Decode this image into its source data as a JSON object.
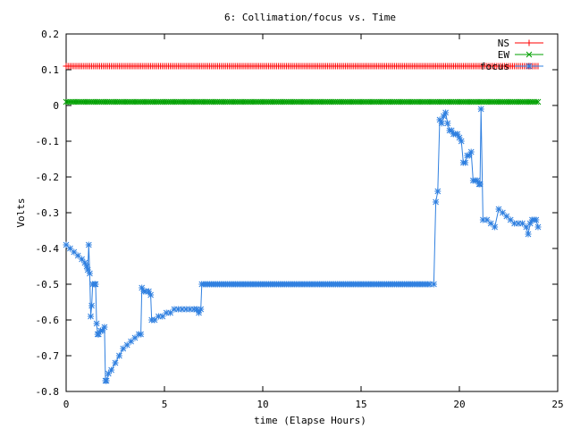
{
  "chart_data": {
    "type": "line",
    "title": "6: Collimation/focus vs. Time",
    "xlabel": "time (Elapse Hours)",
    "ylabel": "Volts",
    "xlim": [
      0,
      25
    ],
    "ylim": [
      -0.8,
      0.2
    ],
    "xticks": [
      0,
      5,
      10,
      15,
      20,
      25
    ],
    "yticks": [
      0.2,
      0.1,
      0,
      -0.1,
      -0.2,
      -0.3,
      -0.4,
      -0.5,
      -0.6,
      -0.7,
      -0.8
    ],
    "grid": false,
    "legend_position": "top-right",
    "series": [
      {
        "name": "NS",
        "color": "#ff0000",
        "marker": "plus",
        "constant": 0.11,
        "x_range": [
          0,
          24
        ],
        "n_points": 241
      },
      {
        "name": "EW",
        "color": "#00a000",
        "marker": "cross",
        "constant": 0.01,
        "x_range": [
          0,
          24
        ],
        "n_points": 241
      },
      {
        "name": "focus",
        "color": "#3080e0",
        "marker": "star",
        "points": [
          [
            0.0,
            -0.39
          ],
          [
            0.2,
            -0.4
          ],
          [
            0.4,
            -0.41
          ],
          [
            0.6,
            -0.42
          ],
          [
            0.8,
            -0.43
          ],
          [
            0.95,
            -0.44
          ],
          [
            1.05,
            -0.45
          ],
          [
            1.1,
            -0.46
          ],
          [
            1.15,
            -0.39
          ],
          [
            1.2,
            -0.47
          ],
          [
            1.25,
            -0.59
          ],
          [
            1.3,
            -0.56
          ],
          [
            1.35,
            -0.5
          ],
          [
            1.45,
            -0.5
          ],
          [
            1.5,
            -0.5
          ],
          [
            1.55,
            -0.61
          ],
          [
            1.6,
            -0.64
          ],
          [
            1.65,
            -0.64
          ],
          [
            1.75,
            -0.63
          ],
          [
            1.85,
            -0.63
          ],
          [
            1.95,
            -0.62
          ],
          [
            2.0,
            -0.77
          ],
          [
            2.05,
            -0.77
          ],
          [
            2.15,
            -0.75
          ],
          [
            2.3,
            -0.74
          ],
          [
            2.5,
            -0.72
          ],
          [
            2.7,
            -0.7
          ],
          [
            2.9,
            -0.68
          ],
          [
            3.1,
            -0.67
          ],
          [
            3.3,
            -0.66
          ],
          [
            3.5,
            -0.65
          ],
          [
            3.7,
            -0.64
          ],
          [
            3.8,
            -0.64
          ],
          [
            3.85,
            -0.51
          ],
          [
            3.95,
            -0.52
          ],
          [
            4.05,
            -0.52
          ],
          [
            4.2,
            -0.52
          ],
          [
            4.3,
            -0.53
          ],
          [
            4.35,
            -0.6
          ],
          [
            4.5,
            -0.6
          ],
          [
            4.7,
            -0.59
          ],
          [
            4.9,
            -0.59
          ],
          [
            5.1,
            -0.58
          ],
          [
            5.3,
            -0.58
          ],
          [
            5.5,
            -0.57
          ],
          [
            5.7,
            -0.57
          ],
          [
            5.9,
            -0.57
          ],
          [
            6.1,
            -0.57
          ],
          [
            6.3,
            -0.57
          ],
          [
            6.5,
            -0.57
          ],
          [
            6.65,
            -0.57
          ],
          [
            6.75,
            -0.58
          ],
          [
            6.85,
            -0.57
          ],
          [
            6.9,
            -0.5
          ],
          [
            18.5,
            -0.5
          ],
          [
            18.7,
            -0.5
          ],
          [
            18.8,
            -0.27
          ],
          [
            18.9,
            -0.24
          ],
          [
            19.0,
            -0.04
          ],
          [
            19.1,
            -0.05
          ],
          [
            19.2,
            -0.03
          ],
          [
            19.3,
            -0.02
          ],
          [
            19.4,
            -0.05
          ],
          [
            19.5,
            -0.07
          ],
          [
            19.6,
            -0.07
          ],
          [
            19.7,
            -0.08
          ],
          [
            19.8,
            -0.08
          ],
          [
            19.9,
            -0.08
          ],
          [
            20.0,
            -0.09
          ],
          [
            20.1,
            -0.1
          ],
          [
            20.2,
            -0.16
          ],
          [
            20.3,
            -0.16
          ],
          [
            20.4,
            -0.14
          ],
          [
            20.5,
            -0.14
          ],
          [
            20.6,
            -0.13
          ],
          [
            20.7,
            -0.21
          ],
          [
            20.8,
            -0.21
          ],
          [
            20.9,
            -0.21
          ],
          [
            21.0,
            -0.22
          ],
          [
            21.05,
            -0.22
          ],
          [
            21.1,
            -0.01
          ],
          [
            21.2,
            -0.32
          ],
          [
            21.4,
            -0.32
          ],
          [
            21.6,
            -0.33
          ],
          [
            21.8,
            -0.34
          ],
          [
            22.0,
            -0.29
          ],
          [
            22.2,
            -0.3
          ],
          [
            22.4,
            -0.31
          ],
          [
            22.6,
            -0.32
          ],
          [
            22.8,
            -0.33
          ],
          [
            23.0,
            -0.33
          ],
          [
            23.2,
            -0.33
          ],
          [
            23.4,
            -0.34
          ],
          [
            23.5,
            -0.36
          ],
          [
            23.6,
            -0.33
          ],
          [
            23.7,
            -0.32
          ],
          [
            23.8,
            -0.32
          ],
          [
            23.9,
            -0.32
          ],
          [
            24.0,
            -0.34
          ]
        ]
      }
    ]
  }
}
